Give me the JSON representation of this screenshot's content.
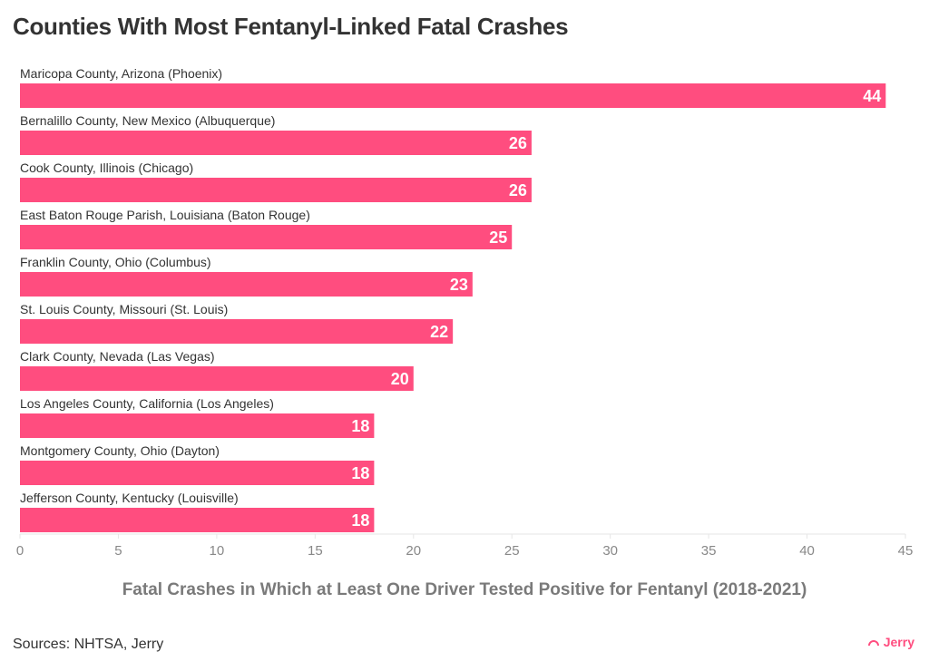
{
  "chart_data": {
    "type": "bar",
    "orientation": "horizontal",
    "title": "Counties With Most Fentanyl-Linked Fatal Crashes",
    "xlabel": "Fatal Crashes in Which at Least One Driver Tested Positive for Fentanyl (2018-2021)",
    "ylabel": "",
    "categories": [
      "Maricopa County, Arizona (Phoenix)",
      "Bernalillo County, New Mexico (Albuquerque)",
      "Cook County, Illinois (Chicago)",
      "East Baton Rouge Parish, Louisiana (Baton Rouge)",
      "Franklin County, Ohio (Columbus)",
      "St. Louis County, Missouri (St. Louis)",
      "Clark County, Nevada (Las Vegas)",
      "Los Angeles County, California (Los Angeles)",
      "Montgomery County, Ohio (Dayton)",
      "Jefferson County, Kentucky (Louisville)"
    ],
    "values": [
      44,
      26,
      26,
      25,
      23,
      22,
      20,
      18,
      18,
      18
    ],
    "xlim": [
      0,
      45
    ],
    "xticks": [
      0,
      5,
      10,
      15,
      20,
      25,
      30,
      35,
      40,
      45
    ],
    "grid": false,
    "data_labels": true,
    "bar_color": "#ff4d7f"
  },
  "source": "Sources: NHTSA, Jerry",
  "logo": "Jerry"
}
